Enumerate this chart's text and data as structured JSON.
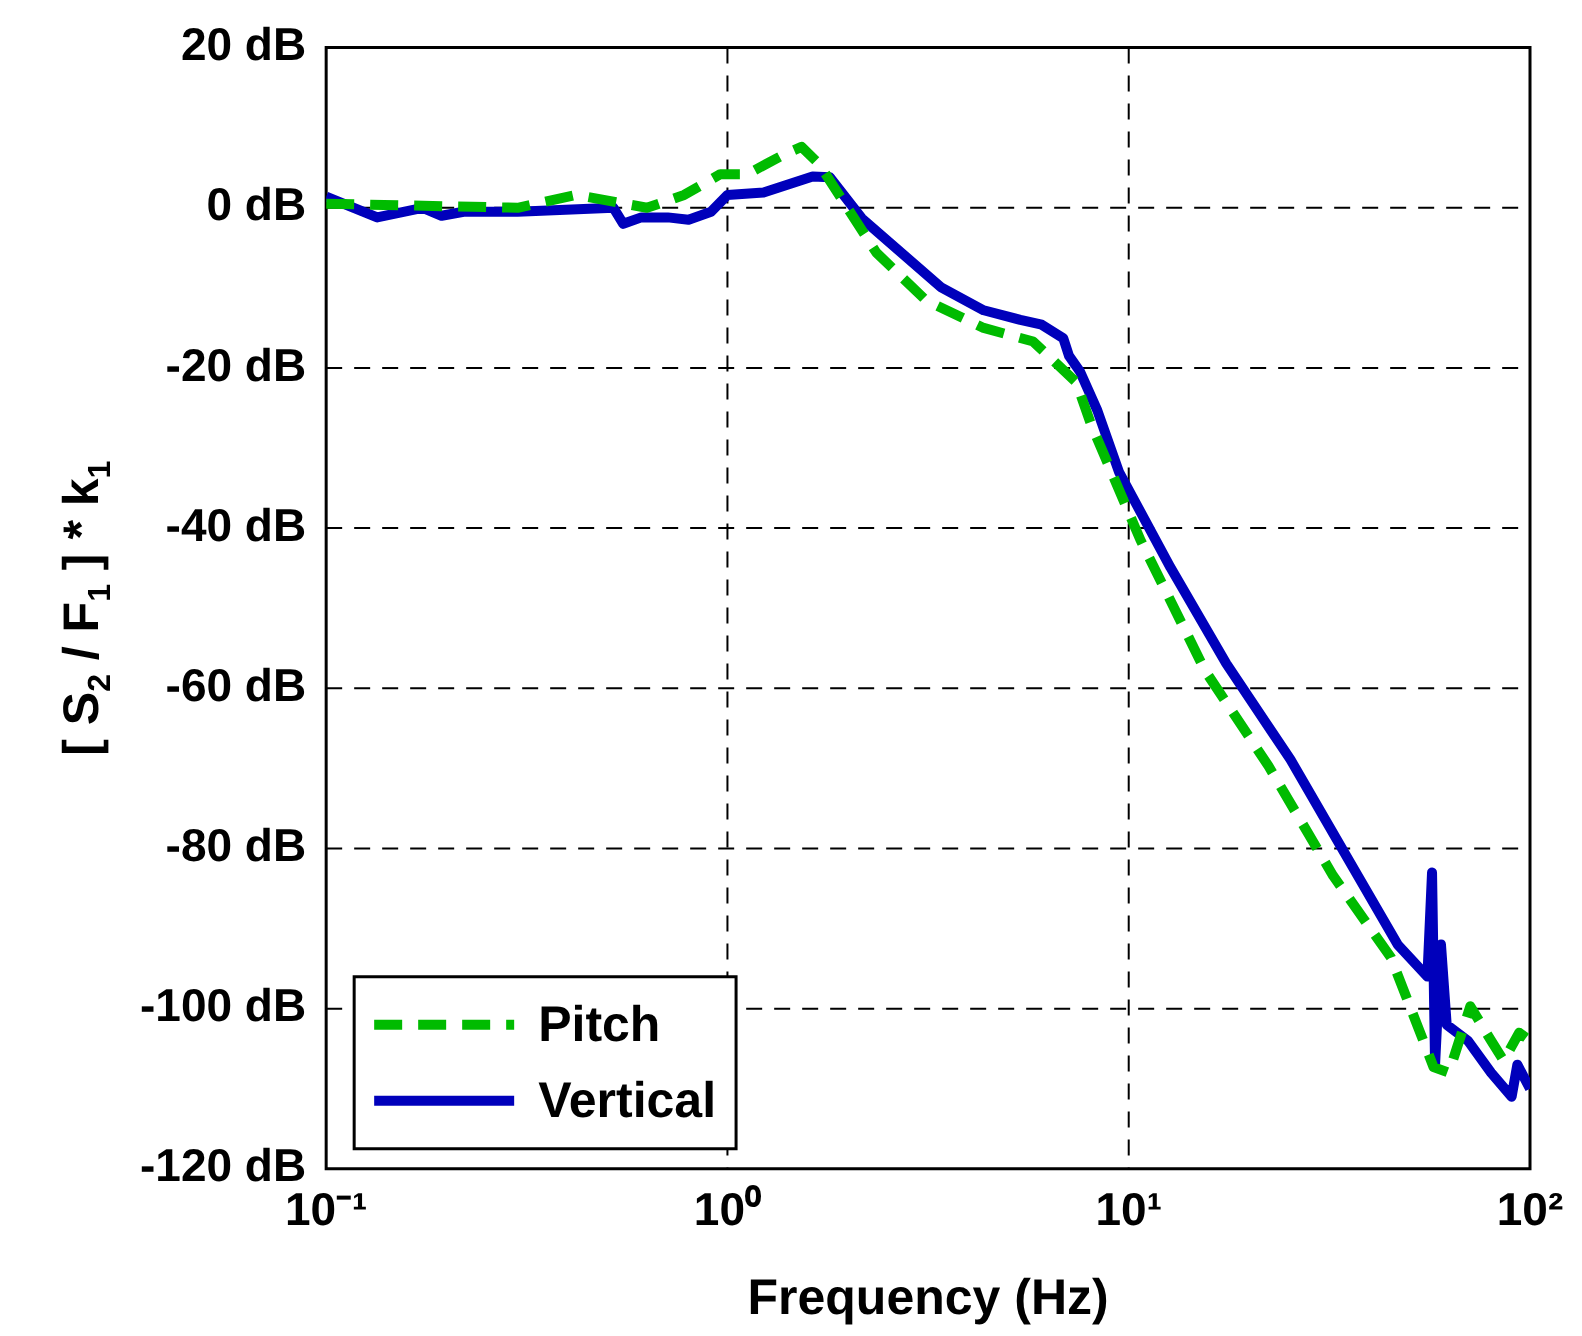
{
  "chart_data": {
    "type": "line",
    "xlabel": "Frequency (Hz)",
    "ylabel": "[ S$_{2}$ / F$_{1}$ ] * k$_{1}$",
    "log": "x",
    "grid": true,
    "legend": "bottom left",
    "marker": "none",
    "xlim": [
      0.1,
      100
    ],
    "xticks": [
      {
        "value": 0.1,
        "label": "10⁻¹"
      },
      {
        "value": 1,
        "label": "10⁰"
      },
      {
        "value": 10,
        "label": "10¹"
      },
      {
        "value": 100,
        "label": "10²"
      }
    ],
    "ylim": [
      -120,
      20
    ],
    "yticks": [
      {
        "value": 20,
        "label": "20 dB"
      },
      {
        "value": 0,
        "label": "0 dB"
      },
      {
        "value": -20,
        "label": "-20 dB"
      },
      {
        "value": -40,
        "label": "-40 dB"
      },
      {
        "value": -60,
        "label": "-60 dB"
      },
      {
        "value": -80,
        "label": "-80 dB"
      },
      {
        "value": -100,
        "label": "-100 dB"
      },
      {
        "value": -120,
        "label": "-120 dB"
      }
    ],
    "series": [
      {
        "name": "Pitch",
        "color": "#00bb00",
        "line_style": "dashed",
        "x": [
          0.1,
          0.3,
          0.42,
          0.63,
          0.78,
          0.96,
          1.12,
          1.39,
          1.53,
          1.69,
          2.35,
          3.13,
          4.35,
          5.78,
          7.4,
          8.05,
          10.7,
          15.5,
          22.3,
          32.3,
          45,
          57.5,
          62.8,
          71,
          80,
          86,
          94,
          100
        ],
        "values": [
          0.5,
          0,
          1.6,
          0,
          1.6,
          4.2,
          4.2,
          6.7,
          7.6,
          5.5,
          -5.6,
          -11.6,
          -15,
          -16.7,
          -21.8,
          -27,
          -41.5,
          -57.8,
          -69.7,
          -83.4,
          -93.6,
          -107.3,
          -108,
          -99.7,
          -104,
          -106.5,
          -103,
          -104
        ]
      },
      {
        "name": "Vertical",
        "color": "#0000bb",
        "line_style": "solid",
        "x": [
          0.1,
          0.134,
          0.174,
          0.194,
          0.22,
          0.3,
          0.52,
          0.55,
          0.61,
          0.71,
          0.8,
          0.91,
          1,
          1.23,
          1.63,
          1.8,
          2.16,
          3.4,
          4.35,
          5.37,
          6.07,
          6.87,
          7.1,
          7.57,
          8.35,
          9.46,
          12.7,
          17.5,
          25.3,
          34,
          46.8,
          55.5,
          57,
          58,
          60,
          62,
          70,
          80,
          90,
          93,
          100
        ],
        "values": [
          1.4,
          -1.2,
          0,
          -1,
          -0.5,
          -0.5,
          0,
          -2,
          -1.2,
          -1.2,
          -1.5,
          -0.5,
          1.6,
          1.9,
          3.9,
          3.8,
          -1.3,
          -9.9,
          -12.8,
          -14,
          -14.6,
          -16.3,
          -18.5,
          -20.5,
          -25.3,
          -33,
          -44.9,
          -56.9,
          -68.9,
          -80,
          -92,
          -96,
          -83,
          -107,
          -92,
          -102,
          -104,
          -108,
          -111,
          -107,
          -110
        ]
      }
    ]
  }
}
